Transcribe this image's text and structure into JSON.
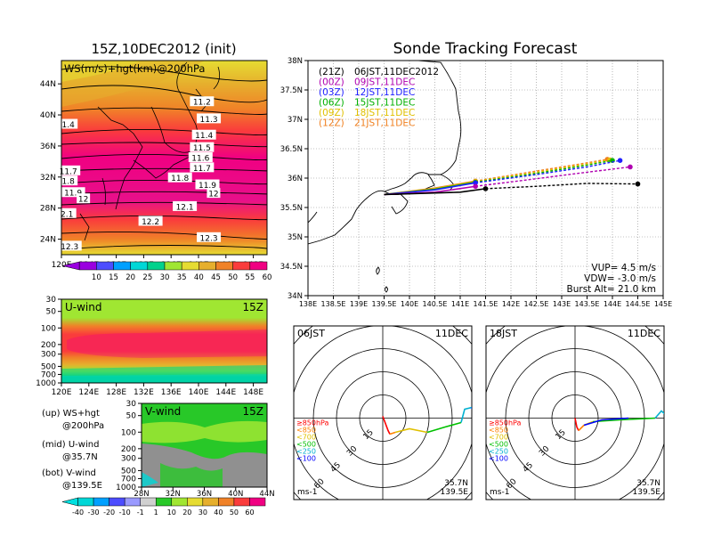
{
  "chart_data": [
    {
      "type": "heatmap",
      "title": "15Z,10DEC2012 (init)",
      "panel_label": "WS(m/s)+hgt(km)@200hPa",
      "x_ticks": [
        "120E",
        "124E",
        "128E",
        "132E",
        "136E",
        "140E",
        "144E",
        "148E"
      ],
      "y_ticks": [
        "24N",
        "28N",
        "32N",
        "36N",
        "40N",
        "44N"
      ],
      "xlim": [
        120,
        150
      ],
      "ylim": [
        22,
        47
      ],
      "contour_labels": [
        {
          "text": "11.2",
          "lon": 140.5,
          "lat": 41.7
        },
        {
          "text": "11.3",
          "lon": 141.5,
          "lat": 39.5
        },
        {
          "text": "11.4",
          "lon": 140.8,
          "lat": 37.4
        },
        {
          "text": "11.5",
          "lon": 140.5,
          "lat": 35.8
        },
        {
          "text": "11.6",
          "lon": 140.3,
          "lat": 34.5
        },
        {
          "text": "11.7",
          "lon": 140.5,
          "lat": 33.2
        },
        {
          "text": "11.8",
          "lon": 137.3,
          "lat": 31.9
        },
        {
          "text": "11.9",
          "lon": 141.3,
          "lat": 31.0
        },
        {
          "text": "12",
          "lon": 142.2,
          "lat": 29.9
        },
        {
          "text": "12.1",
          "lon": 138.0,
          "lat": 28.2
        },
        {
          "text": "12.2",
          "lon": 133.0,
          "lat": 26.3
        },
        {
          "text": "12.3",
          "lon": 141.5,
          "lat": 24.2
        },
        {
          "text": "1.4",
          "lon": 121.0,
          "lat": 38.8
        },
        {
          "text": "11.7",
          "lon": 121.0,
          "lat": 32.8
        },
        {
          "text": "1.8",
          "lon": 121.0,
          "lat": 31.5
        },
        {
          "text": "11.9",
          "lon": 121.7,
          "lat": 30.0
        },
        {
          "text": "12",
          "lon": 123.2,
          "lat": 29.2
        },
        {
          "text": "2.1",
          "lon": 120.8,
          "lat": 27.3
        },
        {
          "text": "12.3",
          "lon": 121.2,
          "lat": 23.1
        }
      ],
      "colorbar": [
        "10",
        "15",
        "20",
        "25",
        "30",
        "35",
        "40",
        "45",
        "50",
        "55",
        "60"
      ],
      "colorbar_colors": [
        "#9a00e0",
        "#4d4dff",
        "#00a0ff",
        "#00d7d7",
        "#00d28c",
        "#a0e632",
        "#e6dc32",
        "#e6af2d",
        "#f08228",
        "#fa3c3c",
        "#f00082"
      ]
    },
    {
      "type": "heatmap",
      "label": "U-wind",
      "time": "15Z",
      "x_ticks": [
        "120E",
        "124E",
        "128E",
        "132E",
        "136E",
        "140E",
        "144E",
        "148E"
      ],
      "y_ticks": [
        "30",
        "50",
        "100",
        "200",
        "300",
        "500",
        "700",
        "1000"
      ]
    },
    {
      "type": "heatmap",
      "label": "V-wind",
      "time": "15Z",
      "x_ticks": [
        "28N",
        "32N",
        "36N",
        "40N",
        "44N"
      ],
      "y_ticks": [
        "30",
        "50",
        "100",
        "200",
        "300",
        "500",
        "700",
        "1000"
      ],
      "colorbar": [
        "-40",
        "-30",
        "-20",
        "-10",
        "-1",
        "1",
        "10",
        "20",
        "30",
        "40",
        "50",
        "60"
      ]
    },
    {
      "type": "line",
      "title": "Sonde Tracking Forecast",
      "x_ticks": [
        "138E",
        "138.5E",
        "139E",
        "139.5E",
        "140E",
        "140.5E",
        "141E",
        "141.5E",
        "142E",
        "142.5E",
        "143E",
        "143.5E",
        "144E",
        "144.5E",
        "145E"
      ],
      "y_ticks": [
        "34N",
        "34.5N",
        "35N",
        "35.5N",
        "36N",
        "36.5N",
        "37N",
        "37.5N",
        "38N"
      ],
      "xlim": [
        138,
        145
      ],
      "ylim": [
        34,
        38
      ],
      "legend": [
        {
          "run": "(21Z)",
          "time": "06JST,11DEC2012",
          "color": "#000000"
        },
        {
          "run": "(00Z)",
          "time": "09JST,11DEC",
          "color": "#b000b0"
        },
        {
          "run": "(03Z)",
          "time": "12JST,11DEC",
          "color": "#2020ff"
        },
        {
          "run": "(06Z)",
          "time": "15JST,11DEC",
          "color": "#00b000"
        },
        {
          "run": "(09Z)",
          "time": "18JST,11DEC",
          "color": "#e0c000"
        },
        {
          "run": "(12Z)",
          "time": "21JST,11DEC",
          "color": "#f08020"
        }
      ],
      "series": [
        {
          "color": "#000000",
          "points": [
            [
              139.5,
              35.72
            ],
            [
              141.0,
              35.76
            ],
            [
              141.5,
              35.82
            ],
            [
              142.5,
              35.86
            ],
            [
              143.5,
              35.91
            ],
            [
              144.5,
              35.9
            ]
          ],
          "floats": [
            [
              141.5,
              35.82
            ],
            [
              144.5,
              35.9
            ]
          ]
        },
        {
          "color": "#b000b0",
          "points": [
            [
              139.5,
              35.72
            ],
            [
              140.5,
              35.76
            ],
            [
              141.3,
              35.86
            ],
            [
              142.5,
              35.99
            ],
            [
              143.5,
              36.1
            ],
            [
              144.35,
              36.19
            ]
          ],
          "floats": [
            [
              141.3,
              35.86
            ],
            [
              144.35,
              36.19
            ]
          ]
        },
        {
          "color": "#2020ff",
          "points": [
            [
              139.5,
              35.72
            ],
            [
              140.5,
              35.8
            ],
            [
              141.3,
              35.92
            ],
            [
              142.5,
              36.06
            ],
            [
              143.5,
              36.19
            ],
            [
              144.15,
              36.3
            ]
          ],
          "floats": [
            [
              141.3,
              35.92
            ],
            [
              144.15,
              36.3
            ]
          ]
        },
        {
          "color": "#00b000",
          "points": [
            [
              139.5,
              35.72
            ],
            [
              140.5,
              35.81
            ],
            [
              141.3,
              35.93
            ],
            [
              142.5,
              36.08
            ],
            [
              143.5,
              36.22
            ],
            [
              144.0,
              36.3
            ]
          ],
          "floats": [
            [
              141.3,
              35.93
            ],
            [
              144.0,
              36.3
            ]
          ]
        },
        {
          "color": "#e0c000",
          "points": [
            [
              139.5,
              35.72
            ],
            [
              140.5,
              35.82
            ],
            [
              141.3,
              35.94
            ],
            [
              142.5,
              36.1
            ],
            [
              143.5,
              36.24
            ],
            [
              143.95,
              36.31
            ]
          ],
          "floats": [
            [
              141.3,
              35.94
            ],
            [
              143.95,
              36.31
            ]
          ]
        },
        {
          "color": "#f08020",
          "points": [
            [
              139.5,
              35.72
            ],
            [
              140.5,
              35.83
            ],
            [
              141.3,
              35.95
            ],
            [
              142.5,
              36.12
            ],
            [
              143.5,
              36.26
            ],
            [
              143.9,
              36.32
            ]
          ],
          "floats": [
            [
              141.3,
              35.95
            ],
            [
              143.9,
              36.32
            ]
          ]
        }
      ],
      "params": [
        "VUP= 4.5 m/s",
        "VDW= -3.0 m/s",
        "Burst Alt= 21.0 km"
      ]
    },
    {
      "type": "scatter",
      "label": "06JST",
      "date": "11DEC",
      "ring_labels": [
        "15",
        "30",
        "45",
        "60"
      ],
      "levels": [
        "≥850hPa",
        "<850",
        "<700",
        "<500",
        "<250",
        "<100"
      ],
      "level_colors": [
        "#ff0000",
        "#ff8000",
        "#e0c000",
        "#00c000",
        "#00b0d0",
        "#0000ff"
      ],
      "unit": "ms-1",
      "location": [
        "35.7N",
        "139.5E"
      ]
    },
    {
      "type": "scatter",
      "label": "18JST",
      "date": "11DEC",
      "ring_labels": [
        "15",
        "30",
        "45",
        "60"
      ],
      "levels": [
        "≥850hPa",
        "<850",
        "<700",
        "<500",
        "<250",
        "<100"
      ],
      "level_colors": [
        "#ff0000",
        "#ff8000",
        "#e0c000",
        "#00c000",
        "#00b0d0",
        "#0000ff"
      ],
      "unit": "ms-1",
      "location": [
        "35.7N",
        "139.5E"
      ]
    }
  ],
  "caption": {
    "up": [
      "(up) WS+hgt",
      "@200hPa"
    ],
    "mid": [
      "(mid) U-wind",
      "@35.7N"
    ],
    "bot": [
      "(bot) V-wind",
      "@139.5E"
    ]
  }
}
